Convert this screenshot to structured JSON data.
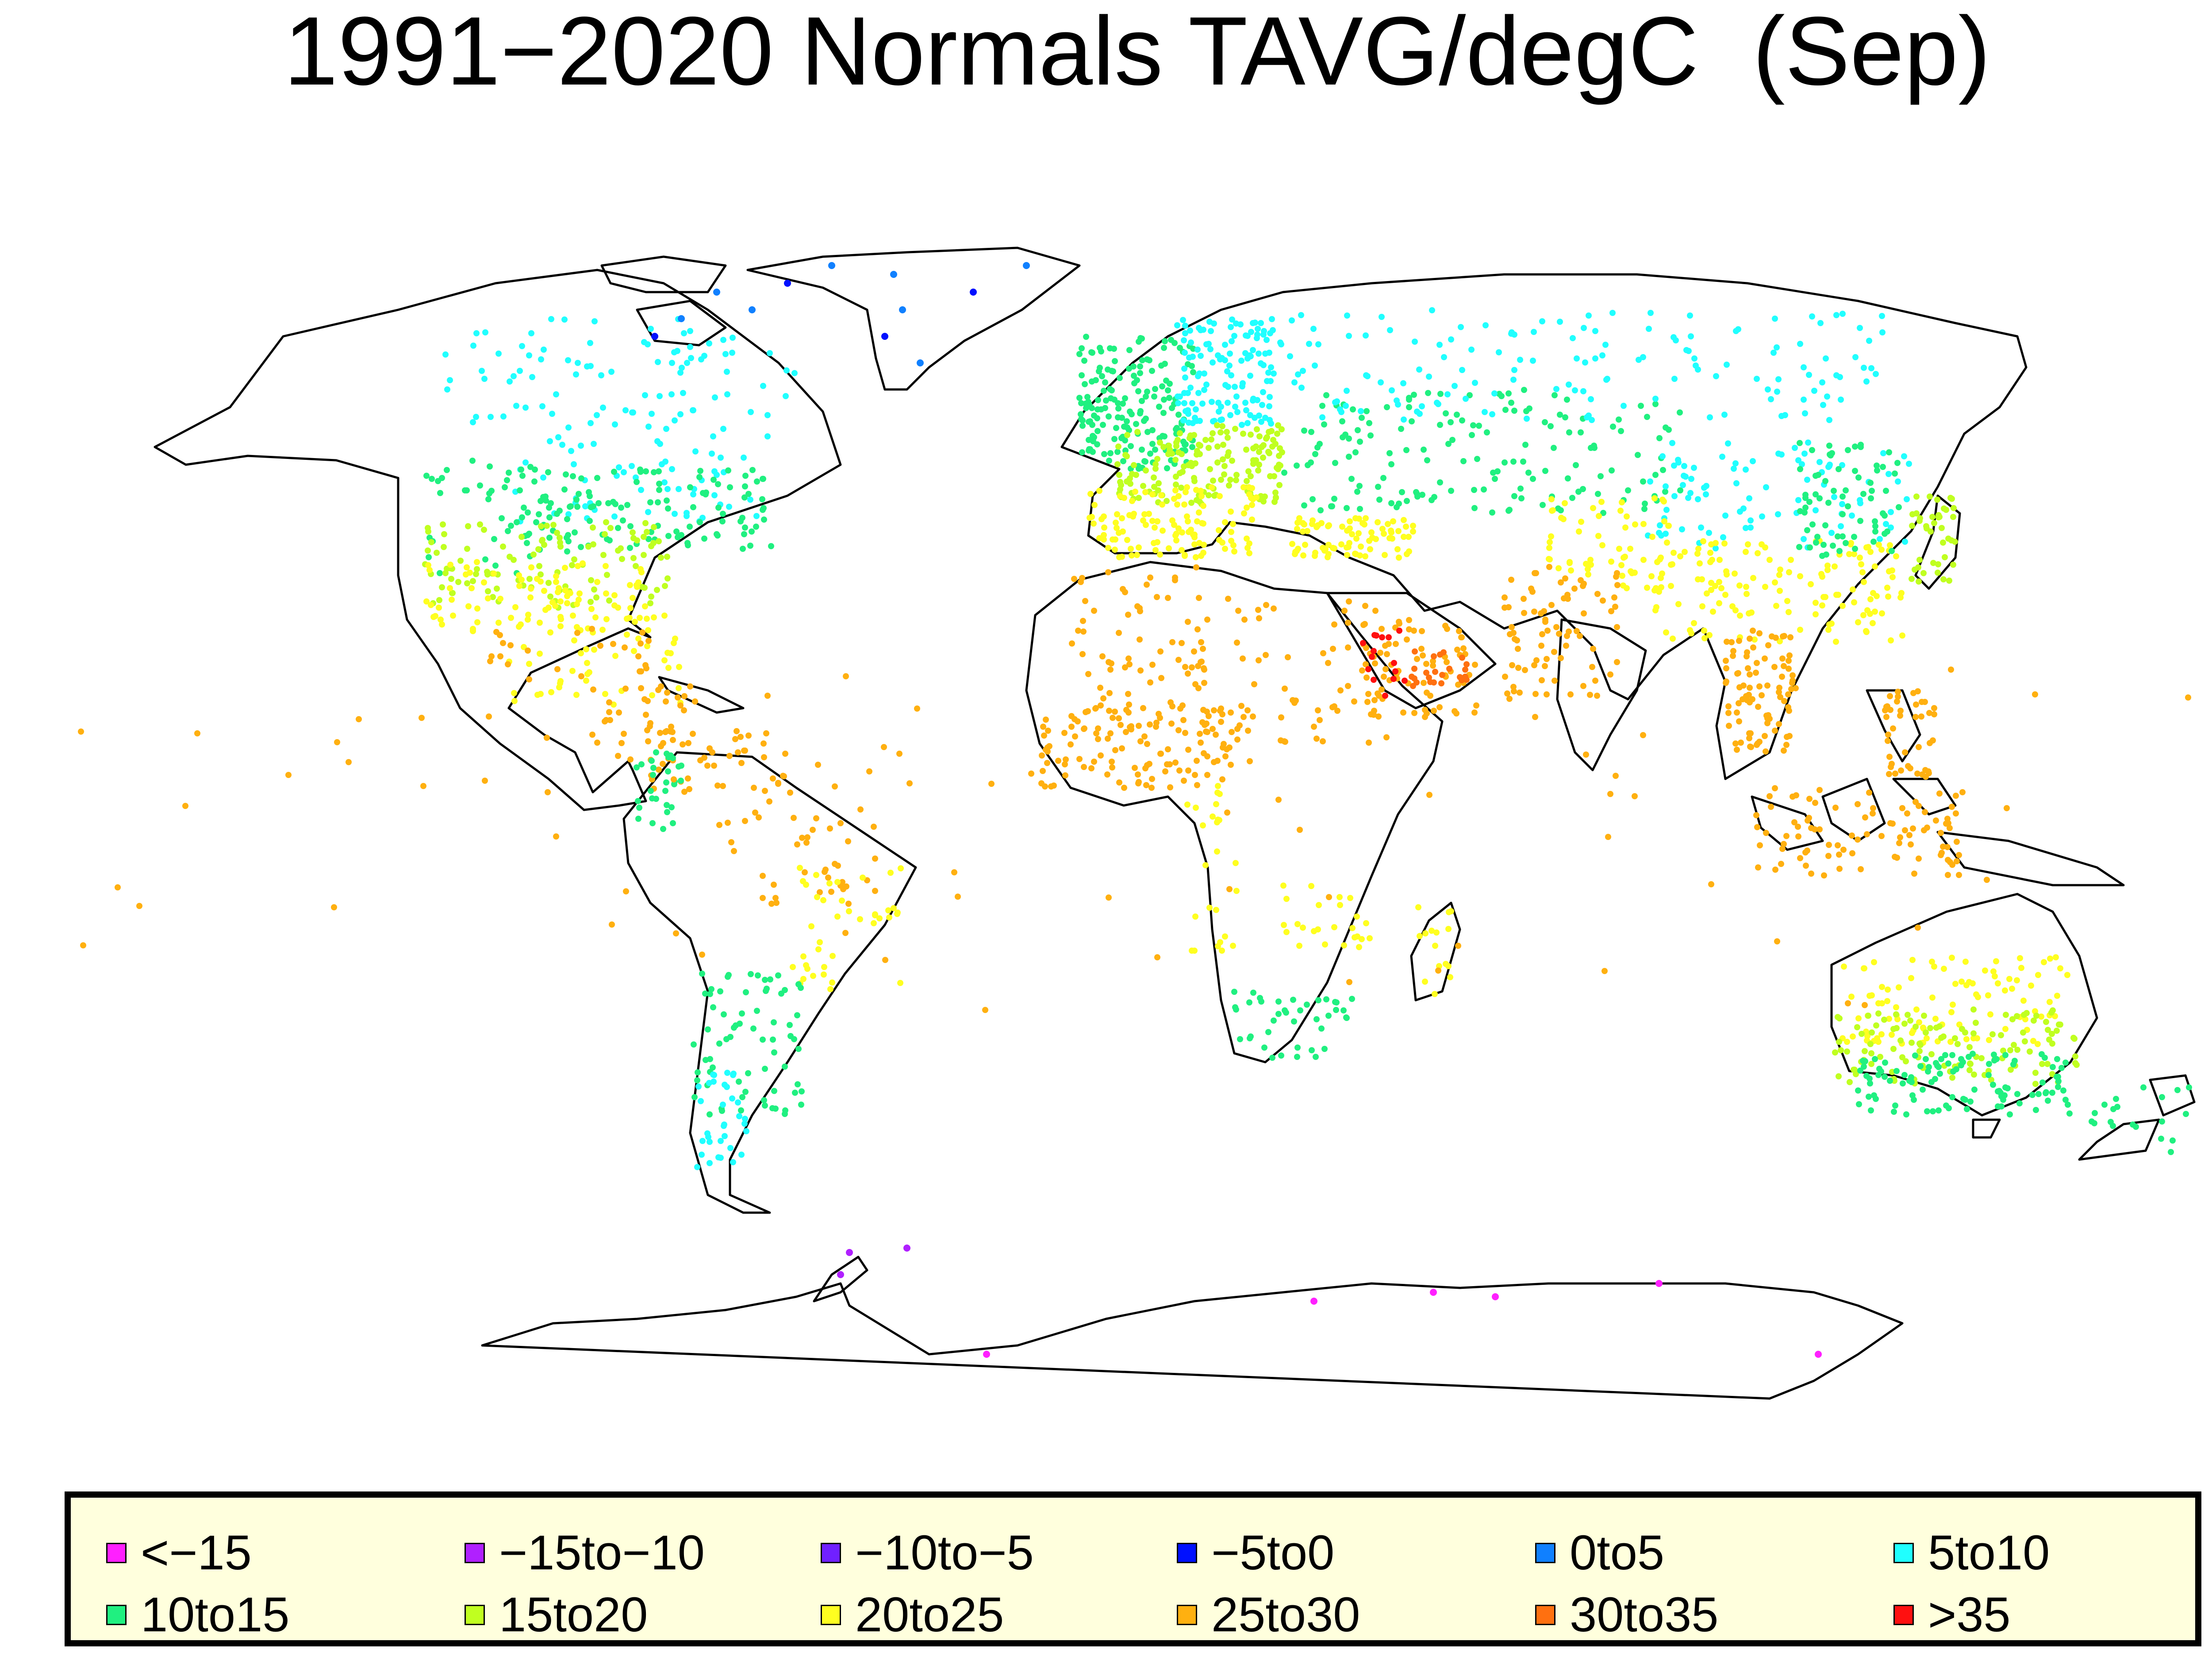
{
  "title": "1991−2020 Normals TAVG/degC  (Sep)",
  "legend": [
    {
      "label": "<−15",
      "color": "#ff20ff"
    },
    {
      "label": "−15to−10",
      "color": "#b020ff"
    },
    {
      "label": "−10to−5",
      "color": "#7020ff"
    },
    {
      "label": "−5to0",
      "color": "#0010ff"
    },
    {
      "label": "0to5",
      "color": "#1080ff"
    },
    {
      "label": "5to10",
      "color": "#20ffff"
    },
    {
      "label": "10to15",
      "color": "#20f080"
    },
    {
      "label": "15to20",
      "color": "#c0ff20"
    },
    {
      "label": "20to25",
      "color": "#ffff20"
    },
    {
      "label": "25to30",
      "color": "#ffb010"
    },
    {
      "label": "30to35",
      "color": "#ff7010"
    },
    {
      "label": ">35",
      "color": "#ff1010"
    }
  ]
}
